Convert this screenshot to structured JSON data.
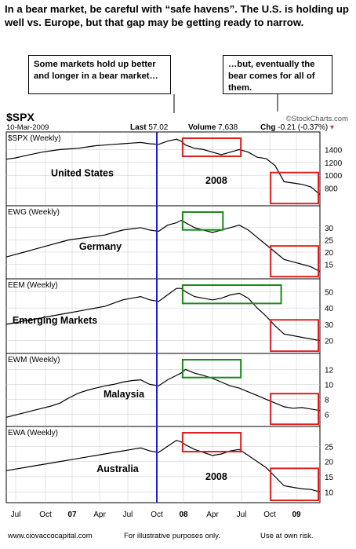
{
  "headline": "In a bear market, be careful with “safe havens”.  The U.S. is holding up well vs. Europe, but that gap may be getting ready to narrow.",
  "callout_left": "Some markets hold up better and longer in a bear market…",
  "callout_right": "…but, eventually the bear comes for all of them.",
  "header": {
    "symbol": "$SPX",
    "date": "10-Mar-2009",
    "last_label": "Last",
    "last_value": "57.02",
    "volume_label": "Volume",
    "volume_value": "7,638",
    "chg_label": "Chg",
    "chg_value": "-0.21 (-0.37%)",
    "brand": "©StockCharts.com"
  },
  "footer": {
    "site": "www.ciovaccocapital.com",
    "note1": "For illustrative purposes only.",
    "note2": "Use at own risk."
  },
  "colors": {
    "line": "#000000",
    "marker": "#1f1fd1",
    "bear_box": "#e02020",
    "hold_box": "#1a8a1a",
    "grid": "#c8c8c8"
  },
  "chart_data": {
    "type": "line",
    "x_tick_labels": [
      "Jul",
      "Oct",
      "07",
      "Apr",
      "Jul",
      "Oct",
      "08",
      "Apr",
      "Jul",
      "Oct",
      "09"
    ],
    "panels": [
      {
        "tag": "$SPX (Weekly)",
        "title": "United States",
        "note": "2008",
        "ylim": [
          600,
          1600
        ],
        "yticks": [
          800,
          1000,
          1200,
          1400
        ],
        "x": [
          0,
          4,
          8,
          12,
          16,
          20,
          24,
          28,
          32,
          36,
          40,
          44,
          48,
          52,
          56,
          60,
          64,
          68,
          72,
          76,
          78,
          80,
          84,
          88,
          92,
          96,
          100,
          104,
          108,
          112,
          116,
          120,
          124,
          128,
          132,
          136,
          140
        ],
        "values": [
          1250,
          1270,
          1300,
          1330,
          1360,
          1380,
          1400,
          1410,
          1420,
          1440,
          1460,
          1470,
          1480,
          1490,
          1500,
          1510,
          1490,
          1480,
          1530,
          1560,
          1530,
          1470,
          1420,
          1400,
          1360,
          1320,
          1360,
          1400,
          1360,
          1280,
          1260,
          1150,
          900,
          880,
          860,
          820,
          700
        ]
      },
      {
        "tag": "EWG (Weekly)",
        "title": "Germany",
        "note": "",
        "ylim": [
          11,
          37
        ],
        "yticks": [
          15,
          20,
          25,
          30
        ],
        "x": [
          0,
          4,
          8,
          12,
          16,
          20,
          24,
          28,
          32,
          36,
          40,
          44,
          48,
          52,
          56,
          60,
          64,
          68,
          72,
          76,
          78,
          80,
          84,
          88,
          92,
          96,
          100,
          104,
          108,
          112,
          116,
          120,
          124,
          128,
          132,
          136,
          140
        ],
        "values": [
          18,
          19,
          20,
          21,
          22,
          23,
          24,
          25,
          25.5,
          26,
          26.5,
          27,
          28,
          29,
          29.5,
          30,
          29,
          28.5,
          31,
          32,
          33,
          32,
          30,
          29,
          28,
          29,
          30,
          31,
          29,
          26,
          23,
          20,
          17,
          16,
          15,
          14,
          12
        ]
      },
      {
        "tag": "EEM (Weekly)",
        "title": "Emerging Markets",
        "note": "",
        "ylim": [
          15,
          55
        ],
        "yticks": [
          20,
          30,
          40,
          50
        ],
        "x": [
          0,
          4,
          8,
          12,
          16,
          20,
          24,
          28,
          32,
          36,
          40,
          44,
          48,
          52,
          56,
          60,
          64,
          68,
          72,
          76,
          78,
          80,
          84,
          88,
          92,
          96,
          100,
          104,
          108,
          112,
          116,
          120,
          124,
          128,
          132,
          136,
          140
        ],
        "values": [
          30,
          31,
          32,
          33,
          34,
          35,
          36,
          37,
          38,
          39,
          40,
          41,
          43,
          45,
          46,
          47,
          45,
          44,
          48,
          52,
          52,
          50,
          47,
          46,
          45,
          46,
          48,
          49,
          46,
          40,
          35,
          29,
          24,
          23,
          22,
          21,
          20
        ]
      },
      {
        "tag": "EWM (Weekly)",
        "title": "Malaysia",
        "note": "",
        "ylim": [
          5,
          13.5
        ],
        "yticks": [
          6,
          8,
          10,
          12
        ],
        "x": [
          0,
          4,
          8,
          12,
          16,
          20,
          24,
          28,
          32,
          36,
          40,
          44,
          48,
          52,
          56,
          60,
          64,
          68,
          72,
          76,
          78,
          80,
          84,
          88,
          92,
          96,
          100,
          104,
          108,
          112,
          116,
          120,
          124,
          128,
          132,
          136,
          140
        ],
        "values": [
          5.6,
          5.9,
          6.2,
          6.5,
          6.8,
          7.1,
          7.5,
          8.2,
          8.8,
          9.2,
          9.5,
          9.8,
          10.0,
          10.3,
          10.5,
          10.6,
          10.0,
          9.8,
          10.6,
          11.2,
          11.5,
          12.0,
          11.5,
          11.2,
          10.8,
          10.3,
          9.8,
          9.5,
          9.0,
          8.5,
          8.0,
          7.5,
          7.0,
          6.8,
          6.9,
          6.7,
          6.5
        ]
      },
      {
        "tag": "EWA (Weekly)",
        "title": "Australia",
        "note": "2008",
        "ylim": [
          8,
          30
        ],
        "yticks": [
          10,
          15,
          20,
          25
        ],
        "x": [
          0,
          4,
          8,
          12,
          16,
          20,
          24,
          28,
          32,
          36,
          40,
          44,
          48,
          52,
          56,
          60,
          64,
          68,
          72,
          76,
          78,
          80,
          84,
          88,
          92,
          96,
          100,
          104,
          108,
          112,
          116,
          120,
          124,
          128,
          132,
          136,
          140
        ],
        "values": [
          17,
          17.5,
          18,
          18.5,
          19,
          19.5,
          20,
          20.5,
          21,
          21.5,
          22,
          22.5,
          23,
          23.5,
          24,
          24.5,
          23.5,
          23,
          25,
          27,
          26.5,
          25.5,
          24,
          23,
          22,
          22.5,
          23.5,
          24,
          22,
          20,
          18,
          15,
          12,
          11.5,
          11,
          10.8,
          10
        ]
      }
    ]
  }
}
